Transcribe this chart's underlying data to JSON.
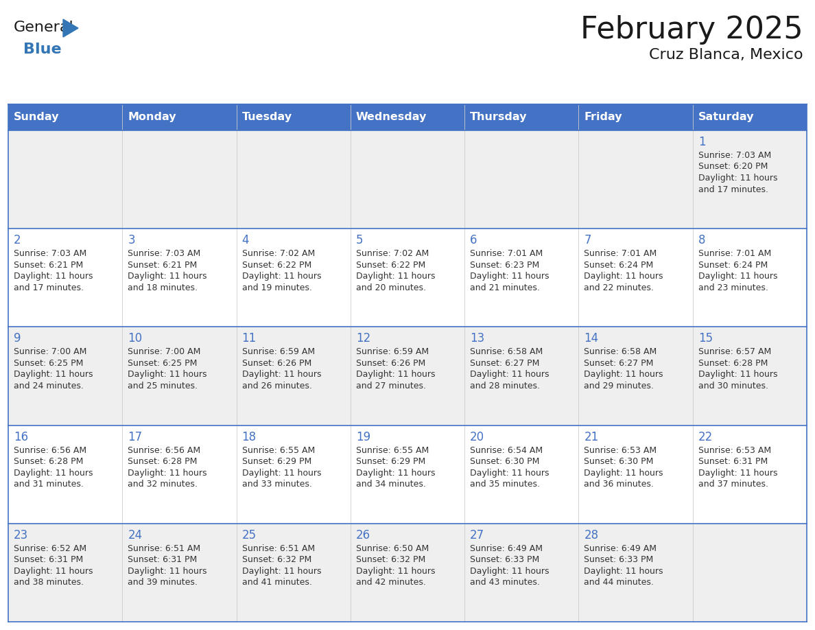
{
  "title": "February 2025",
  "subtitle": "Cruz Blanca, Mexico",
  "days_of_week": [
    "Sunday",
    "Monday",
    "Tuesday",
    "Wednesday",
    "Thursday",
    "Friday",
    "Saturday"
  ],
  "header_bg": "#4472C4",
  "header_text": "#FFFFFF",
  "cell_bg_even": "#EFEFEF",
  "cell_bg_odd": "#FFFFFF",
  "cell_border": "#4472C4",
  "day_num_color": "#4472C4",
  "text_color": "#333333",
  "title_color": "#1a1a1a",
  "logo_general_color": "#1a1a1a",
  "logo_blue_color": "#3375B5",
  "num_cols": 7,
  "calendar_data": [
    [
      null,
      null,
      null,
      null,
      null,
      null,
      {
        "day": 1,
        "sunrise": "7:03 AM",
        "sunset": "6:20 PM",
        "daylight_hours": 11,
        "daylight_minutes": 17
      }
    ],
    [
      {
        "day": 2,
        "sunrise": "7:03 AM",
        "sunset": "6:21 PM",
        "daylight_hours": 11,
        "daylight_minutes": 17
      },
      {
        "day": 3,
        "sunrise": "7:03 AM",
        "sunset": "6:21 PM",
        "daylight_hours": 11,
        "daylight_minutes": 18
      },
      {
        "day": 4,
        "sunrise": "7:02 AM",
        "sunset": "6:22 PM",
        "daylight_hours": 11,
        "daylight_minutes": 19
      },
      {
        "day": 5,
        "sunrise": "7:02 AM",
        "sunset": "6:22 PM",
        "daylight_hours": 11,
        "daylight_minutes": 20
      },
      {
        "day": 6,
        "sunrise": "7:01 AM",
        "sunset": "6:23 PM",
        "daylight_hours": 11,
        "daylight_minutes": 21
      },
      {
        "day": 7,
        "sunrise": "7:01 AM",
        "sunset": "6:24 PM",
        "daylight_hours": 11,
        "daylight_minutes": 22
      },
      {
        "day": 8,
        "sunrise": "7:01 AM",
        "sunset": "6:24 PM",
        "daylight_hours": 11,
        "daylight_minutes": 23
      }
    ],
    [
      {
        "day": 9,
        "sunrise": "7:00 AM",
        "sunset": "6:25 PM",
        "daylight_hours": 11,
        "daylight_minutes": 24
      },
      {
        "day": 10,
        "sunrise": "7:00 AM",
        "sunset": "6:25 PM",
        "daylight_hours": 11,
        "daylight_minutes": 25
      },
      {
        "day": 11,
        "sunrise": "6:59 AM",
        "sunset": "6:26 PM",
        "daylight_hours": 11,
        "daylight_minutes": 26
      },
      {
        "day": 12,
        "sunrise": "6:59 AM",
        "sunset": "6:26 PM",
        "daylight_hours": 11,
        "daylight_minutes": 27
      },
      {
        "day": 13,
        "sunrise": "6:58 AM",
        "sunset": "6:27 PM",
        "daylight_hours": 11,
        "daylight_minutes": 28
      },
      {
        "day": 14,
        "sunrise": "6:58 AM",
        "sunset": "6:27 PM",
        "daylight_hours": 11,
        "daylight_minutes": 29
      },
      {
        "day": 15,
        "sunrise": "6:57 AM",
        "sunset": "6:28 PM",
        "daylight_hours": 11,
        "daylight_minutes": 30
      }
    ],
    [
      {
        "day": 16,
        "sunrise": "6:56 AM",
        "sunset": "6:28 PM",
        "daylight_hours": 11,
        "daylight_minutes": 31
      },
      {
        "day": 17,
        "sunrise": "6:56 AM",
        "sunset": "6:28 PM",
        "daylight_hours": 11,
        "daylight_minutes": 32
      },
      {
        "day": 18,
        "sunrise": "6:55 AM",
        "sunset": "6:29 PM",
        "daylight_hours": 11,
        "daylight_minutes": 33
      },
      {
        "day": 19,
        "sunrise": "6:55 AM",
        "sunset": "6:29 PM",
        "daylight_hours": 11,
        "daylight_minutes": 34
      },
      {
        "day": 20,
        "sunrise": "6:54 AM",
        "sunset": "6:30 PM",
        "daylight_hours": 11,
        "daylight_minutes": 35
      },
      {
        "day": 21,
        "sunrise": "6:53 AM",
        "sunset": "6:30 PM",
        "daylight_hours": 11,
        "daylight_minutes": 36
      },
      {
        "day": 22,
        "sunrise": "6:53 AM",
        "sunset": "6:31 PM",
        "daylight_hours": 11,
        "daylight_minutes": 37
      }
    ],
    [
      {
        "day": 23,
        "sunrise": "6:52 AM",
        "sunset": "6:31 PM",
        "daylight_hours": 11,
        "daylight_minutes": 38
      },
      {
        "day": 24,
        "sunrise": "6:51 AM",
        "sunset": "6:31 PM",
        "daylight_hours": 11,
        "daylight_minutes": 39
      },
      {
        "day": 25,
        "sunrise": "6:51 AM",
        "sunset": "6:32 PM",
        "daylight_hours": 11,
        "daylight_minutes": 41
      },
      {
        "day": 26,
        "sunrise": "6:50 AM",
        "sunset": "6:32 PM",
        "daylight_hours": 11,
        "daylight_minutes": 42
      },
      {
        "day": 27,
        "sunrise": "6:49 AM",
        "sunset": "6:33 PM",
        "daylight_hours": 11,
        "daylight_minutes": 43
      },
      {
        "day": 28,
        "sunrise": "6:49 AM",
        "sunset": "6:33 PM",
        "daylight_hours": 11,
        "daylight_minutes": 44
      },
      null
    ]
  ],
  "fig_width": 11.88,
  "fig_height": 9.18,
  "header_fontsize": 11.5,
  "day_num_fontsize": 12,
  "cell_text_fontsize": 9.0,
  "title_fontsize": 32,
  "subtitle_fontsize": 16
}
